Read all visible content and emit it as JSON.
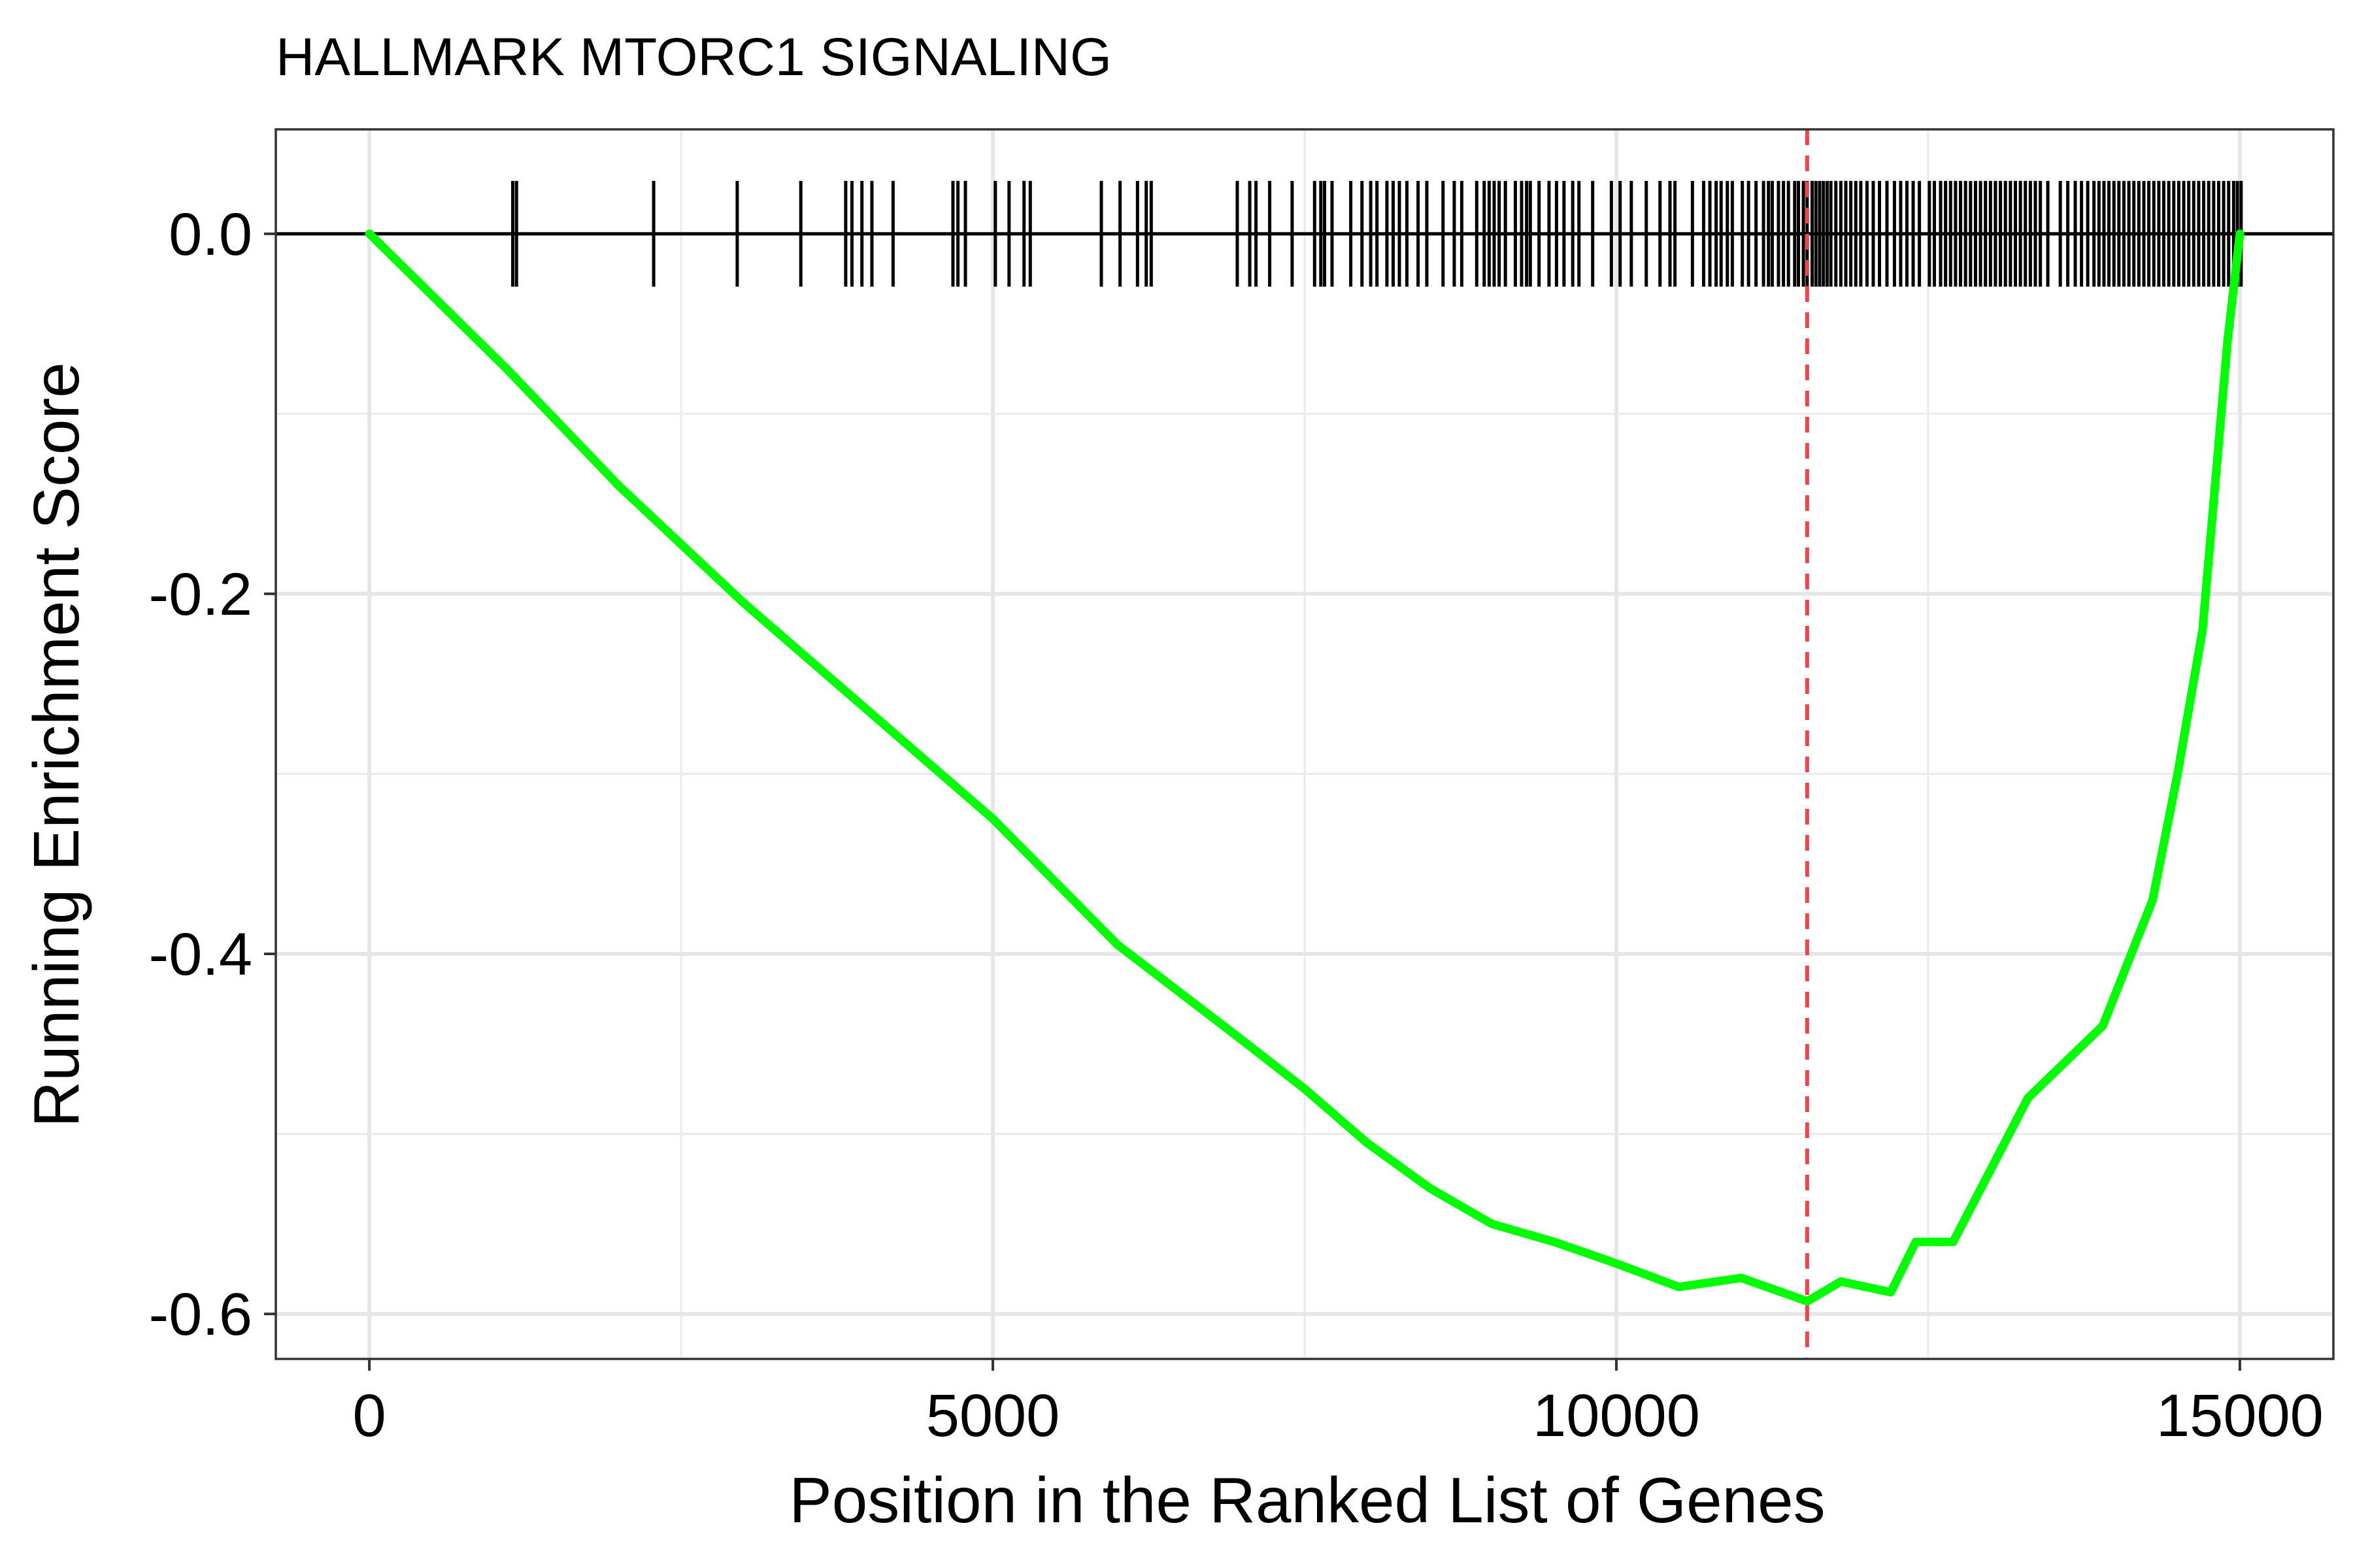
{
  "chart_data": {
    "type": "line",
    "title": "HALLMARK MTORC1 SIGNALING",
    "xlabel": "Position in the Ranked List of Genes",
    "ylabel": "Running Enrichment Score",
    "xlim": [
      -750,
      15750
    ],
    "ylim": [
      -0.625,
      0.058
    ],
    "x_ticks": [
      0,
      5000,
      10000,
      15000
    ],
    "x_tick_labels": [
      "0",
      "5000",
      "10000",
      "15000"
    ],
    "y_ticks": [
      0.0,
      -0.2,
      -0.4,
      -0.6
    ],
    "y_tick_labels": [
      "0.0",
      "-0.2",
      "-0.4",
      "-0.6"
    ],
    "x_minor_ticks": [
      2500,
      7500,
      12500
    ],
    "y_minor_ticks": [
      -0.1,
      -0.3,
      -0.5
    ],
    "grid": true,
    "legend": "none",
    "zero_line": 0.0,
    "enrichment_peak": {
      "x": 11530,
      "y": -0.593
    },
    "series": [
      {
        "color": "#00ff00",
        "x": [
          0,
          1100,
          2000,
          3000,
          4000,
          5000,
          6000,
          7000,
          7500,
          8000,
          8500,
          9000,
          9500,
          10000,
          10500,
          11000,
          11530,
          11800,
          12200,
          12400,
          12700,
          13000,
          13300,
          13600,
          13900,
          14100,
          14300,
          14500,
          14700,
          14800,
          14900,
          15000
        ],
        "y": [
          0.0,
          -0.075,
          -0.14,
          -0.205,
          -0.265,
          -0.325,
          -0.395,
          -0.448,
          -0.475,
          -0.505,
          -0.53,
          -0.55,
          -0.56,
          -0.572,
          -0.585,
          -0.58,
          -0.593,
          -0.582,
          -0.588,
          -0.56,
          -0.56,
          -0.52,
          -0.48,
          -0.46,
          -0.44,
          -0.405,
          -0.37,
          -0.3,
          -0.22,
          -0.14,
          -0.06,
          0.0
        ]
      }
    ],
    "gene_hits": [
      1150,
      1180,
      2280,
      2950,
      3460,
      3820,
      3870,
      3950,
      4030,
      4200,
      4680,
      4720,
      4780,
      5020,
      5130,
      5250,
      5300,
      5870,
      6020,
      6160,
      6230,
      6270,
      6960,
      7060,
      7110,
      7220,
      7400,
      7580,
      7630,
      7660,
      7720,
      7870,
      7960,
      8030,
      8080,
      8160,
      8210,
      8260,
      8320,
      8410,
      8480,
      8610,
      8700,
      8760,
      8880,
      8940,
      8980,
      9020,
      9060,
      9110,
      9190,
      9240,
      9280,
      9310,
      9380,
      9460,
      9520,
      9580,
      9650,
      9700,
      9810,
      9960,
      10030,
      10120,
      10240,
      10350,
      10430,
      10470,
      10610,
      10700,
      10750,
      10800,
      10840,
      10890,
      10930,
      11010,
      11060,
      11120,
      11180,
      11220,
      11250,
      11300,
      11340,
      11380,
      11430,
      11460,
      11500,
      11530,
      11570,
      11600,
      11630,
      11660,
      11690,
      11720,
      11760,
      11800,
      11840,
      11880,
      11920,
      11960,
      12010,
      12060,
      12110,
      12170,
      12230,
      12280,
      12330,
      12380,
      12430,
      12510,
      12550,
      12600,
      12640,
      12680,
      12720,
      12760,
      12800,
      12840,
      12880,
      12920,
      12960,
      13000,
      13040,
      13080,
      13120,
      13160,
      13200,
      13240,
      13280,
      13320,
      13360,
      13400,
      13460,
      13560,
      13620,
      13680,
      13730,
      13780,
      13830,
      13870,
      13910,
      13950,
      13990,
      14030,
      14070,
      14110,
      14150,
      14190,
      14230,
      14270,
      14310,
      14350,
      14390,
      14430,
      14470,
      14510,
      14550,
      14590,
      14630,
      14670,
      14710,
      14750,
      14790,
      14830,
      14870,
      14910,
      14950,
      14980,
      15010
    ]
  }
}
